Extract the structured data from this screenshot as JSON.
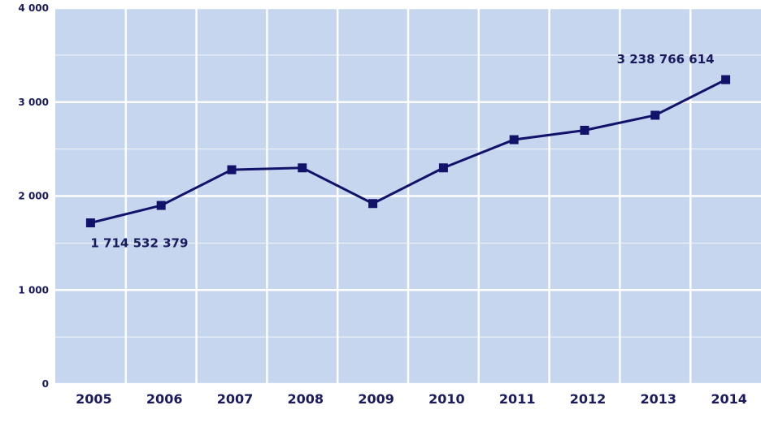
{
  "chart_data": {
    "type": "line",
    "title": "",
    "xlabel": "",
    "ylabel": "",
    "categories": [
      "2005",
      "2006",
      "2007",
      "2008",
      "2009",
      "2010",
      "2011",
      "2012",
      "2013",
      "2014"
    ],
    "series": [
      {
        "values": [
          1714.5,
          1900,
          2280,
          2300,
          1920,
          2300,
          2600,
          2700,
          2860,
          3238.8
        ]
      }
    ],
    "ylim": [
      0,
      4000
    ],
    "yticks": [
      0,
      1000,
      2000,
      3000,
      4000
    ],
    "ytick_labels": [
      "0",
      "1 000",
      "2 000",
      "3 000",
      "4 000"
    ],
    "annotations": [
      {
        "category": "2005",
        "text": "1 714 532 379",
        "position": "below"
      },
      {
        "category": "2014",
        "text": "3 238 766 614",
        "position": "above"
      }
    ],
    "grid": true,
    "legend": "none",
    "colors": {
      "plot_bg": "#c5d6ee",
      "grid": "#ffffff",
      "line": "#12126a",
      "text": "#1a1a5e"
    }
  }
}
